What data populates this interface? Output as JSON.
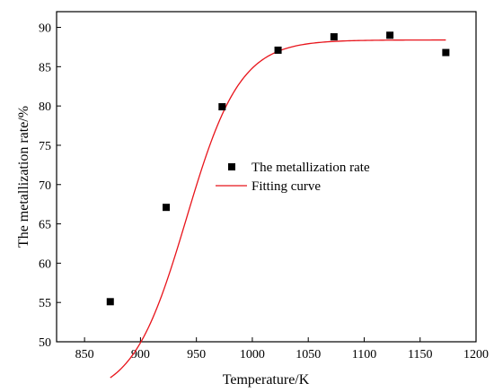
{
  "chart_data": {
    "type": "scatter",
    "xlabel": "Temperature/K",
    "ylabel": "The metallization rate/%",
    "xlim": [
      825,
      1200
    ],
    "ylim": [
      50,
      92
    ],
    "xticks": [
      850,
      900,
      950,
      1000,
      1050,
      1100,
      1150,
      1200
    ],
    "yticks": [
      50,
      55,
      60,
      65,
      70,
      75,
      80,
      85,
      90
    ],
    "grid": false,
    "legend_placement": "center",
    "series": [
      {
        "name": "The metallization rate",
        "kind": "scatter",
        "marker": "square",
        "color": "#000000",
        "x": [
          873,
          923,
          973,
          1023,
          1073,
          1123,
          1173
        ],
        "y": [
          55.1,
          67.1,
          79.9,
          87.1,
          88.8,
          89.0,
          86.8
        ]
      },
      {
        "name": "Fitting curve",
        "kind": "line",
        "color": "#e8141b",
        "x": [
          873,
          1173
        ],
        "model": {
          "A1": 42.9,
          "A2": 88.4,
          "x0": 941,
          "dx": 24
        }
      }
    ]
  }
}
